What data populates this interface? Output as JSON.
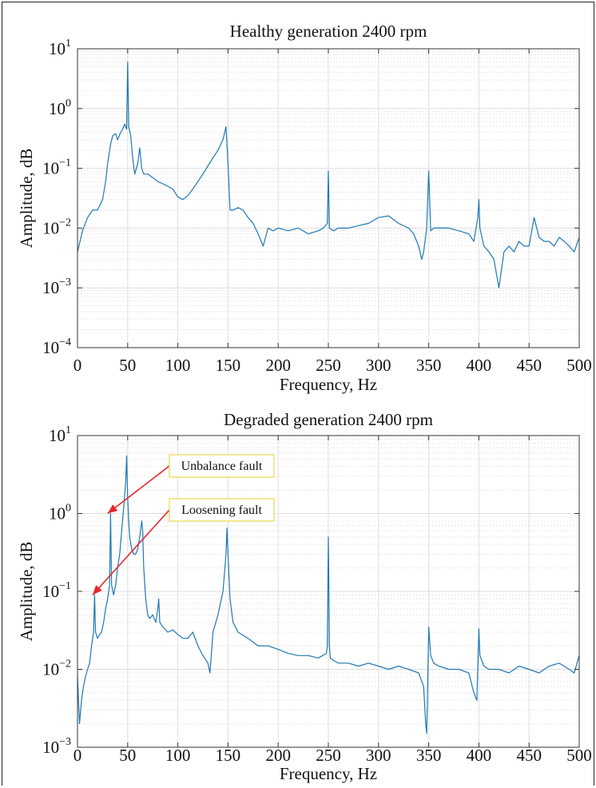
{
  "chart_data": [
    {
      "type": "line",
      "title": "Healthy generation 2400 rpm",
      "xlabel": "Frequency, Hz",
      "ylabel": "Amplitude, dB",
      "xlim": [
        0,
        500
      ],
      "ylim_log10": [
        -4,
        1
      ],
      "yscale": "log",
      "grid": true,
      "x_ticks": [
        "0",
        "50",
        "100",
        "150",
        "200",
        "250",
        "300",
        "350",
        "400",
        "450",
        "500"
      ],
      "y_ticks": [
        {
          "base": "10",
          "exp": "1"
        },
        {
          "base": "10",
          "exp": "0"
        },
        {
          "base": "10",
          "exp": "−1"
        },
        {
          "base": "10",
          "exp": "−2"
        },
        {
          "base": "10",
          "exp": "−3"
        },
        {
          "base": "10",
          "exp": "−4"
        }
      ],
      "series": [
        {
          "x": [
            0,
            5,
            10,
            15,
            20,
            25,
            28,
            30,
            33,
            35,
            38,
            40,
            43,
            45,
            47,
            49,
            50,
            51,
            53,
            55,
            57,
            60,
            62,
            64,
            66,
            70,
            75,
            80,
            85,
            90,
            95,
            100,
            105,
            110,
            115,
            120,
            125,
            130,
            135,
            140,
            145,
            148,
            150,
            152,
            155,
            160,
            165,
            170,
            175,
            180,
            185,
            190,
            195,
            200,
            210,
            220,
            230,
            240,
            245,
            249,
            250,
            251,
            255,
            260,
            270,
            280,
            290,
            300,
            310,
            320,
            330,
            335,
            340,
            343,
            345,
            348,
            350,
            352,
            355,
            360,
            370,
            380,
            390,
            395,
            399,
            400,
            401,
            405,
            410,
            415,
            420,
            425,
            430,
            435,
            440,
            445,
            450,
            455,
            460,
            465,
            470,
            475,
            480,
            485,
            490,
            495,
            500
          ],
          "y": [
            0.004,
            0.009,
            0.015,
            0.02,
            0.02,
            0.03,
            0.06,
            0.12,
            0.25,
            0.35,
            0.38,
            0.3,
            0.4,
            0.45,
            0.55,
            0.45,
            6.0,
            0.5,
            0.35,
            0.15,
            0.08,
            0.12,
            0.22,
            0.1,
            0.08,
            0.08,
            0.07,
            0.06,
            0.055,
            0.05,
            0.045,
            0.033,
            0.03,
            0.035,
            0.045,
            0.06,
            0.08,
            0.11,
            0.15,
            0.2,
            0.3,
            0.5,
            0.12,
            0.02,
            0.02,
            0.022,
            0.02,
            0.015,
            0.012,
            0.008,
            0.005,
            0.01,
            0.009,
            0.01,
            0.009,
            0.01,
            0.008,
            0.009,
            0.01,
            0.012,
            0.09,
            0.01,
            0.009,
            0.01,
            0.01,
            0.011,
            0.012,
            0.015,
            0.016,
            0.012,
            0.01,
            0.008,
            0.005,
            0.003,
            0.004,
            0.01,
            0.09,
            0.009,
            0.01,
            0.01,
            0.01,
            0.009,
            0.008,
            0.006,
            0.015,
            0.03,
            0.01,
            0.005,
            0.004,
            0.003,
            0.001,
            0.004,
            0.005,
            0.004,
            0.006,
            0.005,
            0.005,
            0.015,
            0.007,
            0.006,
            0.006,
            0.005,
            0.007,
            0.006,
            0.005,
            0.004,
            0.007
          ]
        }
      ]
    },
    {
      "type": "line",
      "title": "Degraded generation 2400 rpm",
      "xlabel": "Frequency, Hz",
      "ylabel": "Amplitude, dB",
      "xlim": [
        0,
        500
      ],
      "ylim_log10": [
        -3,
        1
      ],
      "yscale": "log",
      "grid": true,
      "x_ticks": [
        "0",
        "50",
        "100",
        "150",
        "200",
        "250",
        "300",
        "350",
        "400",
        "450",
        "500"
      ],
      "y_ticks": [
        {
          "base": "10",
          "exp": "1"
        },
        {
          "base": "10",
          "exp": "0"
        },
        {
          "base": "10",
          "exp": "−1"
        },
        {
          "base": "10",
          "exp": "−2"
        },
        {
          "base": "10",
          "exp": "−3"
        }
      ],
      "series": [
        {
          "x": [
            0,
            2,
            4,
            6,
            8,
            10,
            12,
            14,
            16,
            17,
            18,
            20,
            22,
            24,
            26,
            28,
            30,
            32,
            33,
            34,
            36,
            38,
            40,
            42,
            44,
            46,
            48,
            49,
            50,
            51,
            52,
            54,
            56,
            58,
            60,
            62,
            64,
            65,
            66,
            68,
            70,
            72,
            75,
            78,
            80,
            81,
            82,
            85,
            90,
            95,
            100,
            105,
            110,
            115,
            120,
            125,
            130,
            132,
            135,
            140,
            145,
            148,
            149,
            150,
            152,
            155,
            160,
            170,
            180,
            190,
            200,
            210,
            220,
            230,
            240,
            248,
            249,
            250,
            251,
            252,
            255,
            260,
            270,
            280,
            290,
            300,
            310,
            320,
            330,
            340,
            345,
            347,
            348,
            349,
            350,
            352,
            355,
            360,
            370,
            380,
            390,
            395,
            398,
            400,
            401,
            405,
            410,
            420,
            430,
            440,
            450,
            460,
            470,
            480,
            490,
            495,
            500
          ],
          "y": [
            0.008,
            0.002,
            0.004,
            0.006,
            0.008,
            0.01,
            0.012,
            0.02,
            0.03,
            0.09,
            0.03,
            0.025,
            0.028,
            0.03,
            0.04,
            0.06,
            0.08,
            0.12,
            1.0,
            0.12,
            0.09,
            0.12,
            0.2,
            0.3,
            0.6,
            1.2,
            2.5,
            5.5,
            1.6,
            0.8,
            0.5,
            0.35,
            0.3,
            0.3,
            0.35,
            0.5,
            0.8,
            0.6,
            0.2,
            0.08,
            0.05,
            0.045,
            0.05,
            0.04,
            0.06,
            0.08,
            0.04,
            0.035,
            0.03,
            0.032,
            0.028,
            0.025,
            0.025,
            0.03,
            0.02,
            0.015,
            0.012,
            0.009,
            0.03,
            0.05,
            0.1,
            0.3,
            0.65,
            0.3,
            0.08,
            0.04,
            0.03,
            0.025,
            0.02,
            0.02,
            0.018,
            0.016,
            0.015,
            0.015,
            0.014,
            0.016,
            0.02,
            0.5,
            0.02,
            0.014,
            0.013,
            0.012,
            0.012,
            0.011,
            0.012,
            0.011,
            0.01,
            0.011,
            0.01,
            0.009,
            0.006,
            0.002,
            0.0015,
            0.006,
            0.035,
            0.015,
            0.012,
            0.011,
            0.01,
            0.01,
            0.009,
            0.005,
            0.004,
            0.033,
            0.015,
            0.011,
            0.01,
            0.01,
            0.009,
            0.011,
            0.01,
            0.009,
            0.011,
            0.012,
            0.01,
            0.009,
            0.015
          ]
        }
      ],
      "annotations": [
        {
          "label": "Unbalance fault",
          "target_x": 30,
          "target_y": 1.0
        },
        {
          "label": "Loosening fault",
          "target_x": 15,
          "target_y": 0.09
        }
      ]
    }
  ]
}
